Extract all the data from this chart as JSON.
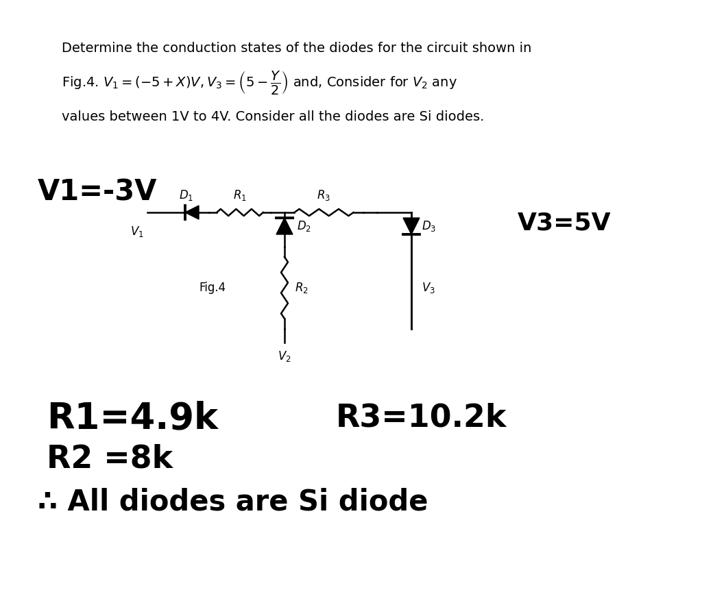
{
  "bg_color": "#ffffff",
  "title_line1": "Determine the conduction states of the diodes for the circuit shown in",
  "title_line2": "Fig.4. $V_1 = (-5 + X)V, V_3 = \\left(5 - \\dfrac{Y}{2}\\right)$ and, Consider for $V_2$ any",
  "title_line3": "values between 1V to 4V. Consider all the diodes are Si diodes.",
  "label_V1_big": "V1=-3V",
  "label_V3_big": "V3=5V",
  "label_R1": "R1=4.9k",
  "label_R2": "R2 =8k",
  "label_R3": "R3=10.2k",
  "label_all": "All diodes are Si diode",
  "label_fig4": "Fig.4",
  "therefore_symbol": "∴"
}
